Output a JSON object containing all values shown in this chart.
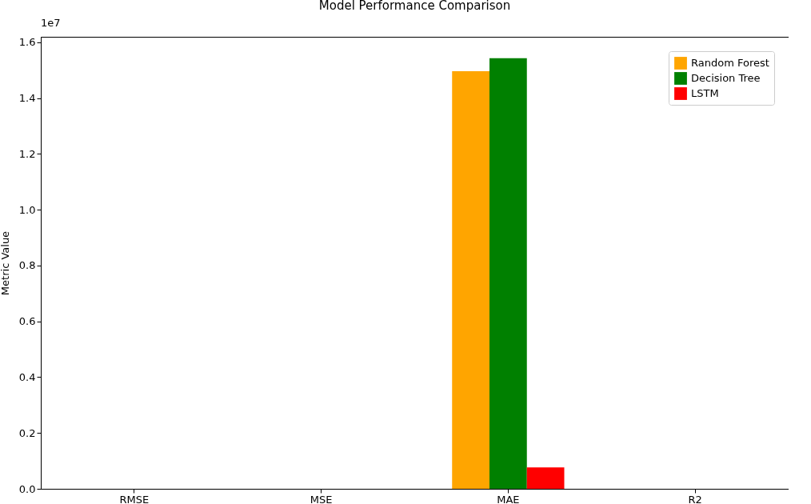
{
  "chart_data": {
    "type": "bar",
    "title": "Model Performance Comparison",
    "ylabel": "Metric Value",
    "categories": [
      "RMSE",
      "MSE",
      "MAE",
      "R2"
    ],
    "series": [
      {
        "name": "Random Forest",
        "color": "#ffa500",
        "values": [
          0,
          0,
          1.497,
          0
        ]
      },
      {
        "name": "Decision Tree",
        "color": "#008000",
        "values": [
          0,
          0,
          1.543,
          0
        ]
      },
      {
        "name": "LSTM",
        "color": "#ff0000",
        "values": [
          0,
          0,
          0.077,
          0
        ]
      }
    ],
    "ylim": [
      0,
      1.62
    ],
    "yticks": [
      {
        "value": 0,
        "label": "0.0"
      },
      0.2,
      0.4,
      0.6,
      0.8,
      {
        "value": 1,
        "label": "1.0"
      },
      1.2,
      1.4,
      1.6
    ],
    "annotations": [
      "1e7"
    ],
    "legend": "top right",
    "grid": false
  }
}
